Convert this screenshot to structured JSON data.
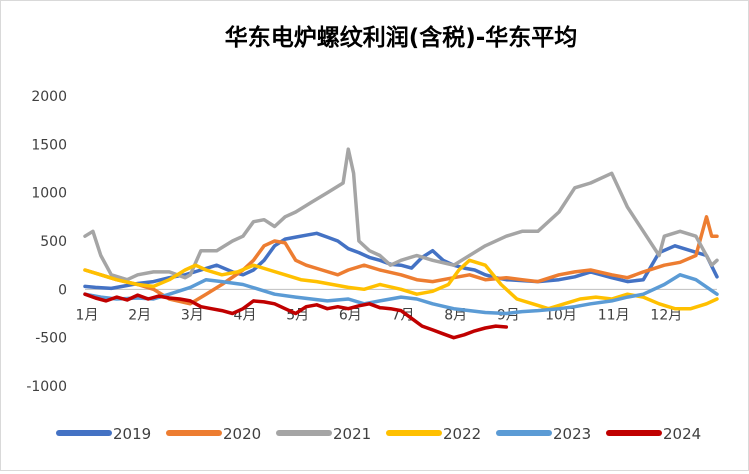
{
  "chart_data": {
    "type": "line",
    "title": "华东电炉螺纹利润(含税)-华东平均",
    "xlabel": "",
    "ylabel": "",
    "ylim": [
      -1000,
      2000
    ],
    "yticks": [
      -1000,
      -500,
      0,
      500,
      1000,
      1500,
      2000
    ],
    "ytick_labels": [
      "-1000",
      "-500",
      "0",
      "500",
      "1000",
      "1500",
      "2000"
    ],
    "xlim": [
      0,
      12
    ],
    "xtick_labels": [
      "1月",
      "2月",
      "3月",
      "4月",
      "5月",
      "6月",
      "7月",
      "8月",
      "9月",
      "10月",
      "11月",
      "12月"
    ],
    "grid": false,
    "legend_position": "bottom",
    "series": [
      {
        "name": "2019",
        "color": "#4472C4",
        "x": [
          0,
          0.2,
          0.5,
          0.8,
          1.0,
          1.3,
          1.6,
          1.9,
          2.2,
          2.5,
          2.8,
          3.0,
          3.2,
          3.4,
          3.6,
          3.8,
          4.0,
          4.2,
          4.4,
          4.6,
          4.8,
          5.0,
          5.2,
          5.4,
          5.6,
          5.8,
          6.0,
          6.2,
          6.4,
          6.6,
          6.8,
          7.0,
          7.2,
          7.4,
          7.6,
          7.8,
          8.0,
          8.3,
          8.6,
          9.0,
          9.3,
          9.6,
          10.0,
          10.3,
          10.6,
          10.9,
          11.2,
          11.5,
          11.8,
          12.0
        ],
        "y": [
          30,
          20,
          10,
          40,
          60,
          80,
          120,
          150,
          200,
          250,
          180,
          150,
          200,
          300,
          450,
          520,
          540,
          560,
          580,
          540,
          500,
          420,
          380,
          330,
          300,
          260,
          250,
          220,
          330,
          400,
          300,
          250,
          220,
          200,
          150,
          120,
          100,
          90,
          80,
          100,
          130,
          180,
          120,
          80,
          100,
          380,
          450,
          400,
          350,
          130
        ]
      },
      {
        "name": "2020",
        "color": "#ED7D31",
        "x": [
          0,
          0.3,
          0.6,
          1.0,
          1.3,
          1.6,
          2.0,
          2.3,
          2.6,
          3.0,
          3.2,
          3.4,
          3.6,
          3.8,
          4.0,
          4.2,
          4.5,
          4.8,
          5.0,
          5.3,
          5.6,
          6.0,
          6.3,
          6.6,
          7.0,
          7.3,
          7.6,
          8.0,
          8.3,
          8.6,
          9.0,
          9.3,
          9.6,
          10.0,
          10.3,
          10.6,
          11.0,
          11.3,
          11.6,
          11.8,
          11.9,
          12.0
        ],
        "y": [
          200,
          150,
          100,
          50,
          0,
          -100,
          -150,
          -50,
          50,
          200,
          300,
          450,
          500,
          480,
          300,
          250,
          200,
          150,
          200,
          250,
          200,
          150,
          100,
          80,
          120,
          150,
          100,
          120,
          100,
          80,
          150,
          180,
          200,
          150,
          120,
          180,
          250,
          280,
          350,
          750,
          550,
          550
        ]
      },
      {
        "name": "2021",
        "color": "#A5A5A5",
        "x": [
          0,
          0.15,
          0.3,
          0.5,
          0.8,
          1.0,
          1.3,
          1.6,
          1.9,
          2.0,
          2.2,
          2.5,
          2.8,
          3.0,
          3.2,
          3.4,
          3.6,
          3.8,
          4.0,
          4.3,
          4.6,
          4.9,
          5.0,
          5.1,
          5.2,
          5.4,
          5.6,
          5.8,
          6.0,
          6.3,
          6.6,
          7.0,
          7.3,
          7.6,
          8.0,
          8.3,
          8.6,
          9.0,
          9.3,
          9.6,
          10.0,
          10.3,
          10.6,
          10.9,
          11.0,
          11.3,
          11.6,
          11.9,
          12.0
        ],
        "y": [
          550,
          600,
          350,
          150,
          100,
          150,
          180,
          180,
          120,
          150,
          400,
          400,
          500,
          550,
          700,
          720,
          650,
          750,
          800,
          900,
          1000,
          1100,
          1450,
          1200,
          500,
          400,
          350,
          250,
          300,
          350,
          300,
          250,
          350,
          450,
          550,
          600,
          600,
          800,
          1050,
          1100,
          1200,
          850,
          600,
          350,
          550,
          600,
          550,
          250,
          300
        ]
      },
      {
        "name": "2022",
        "color": "#FFC000",
        "x": [
          0,
          0.3,
          0.6,
          1.0,
          1.3,
          1.6,
          1.9,
          2.1,
          2.3,
          2.6,
          2.9,
          3.2,
          3.5,
          3.8,
          4.1,
          4.4,
          4.7,
          5.0,
          5.3,
          5.6,
          6.0,
          6.3,
          6.6,
          6.9,
          7.1,
          7.3,
          7.6,
          7.9,
          8.2,
          8.5,
          8.8,
          9.1,
          9.4,
          9.7,
          10.0,
          10.3,
          10.6,
          10.9,
          11.2,
          11.5,
          11.8,
          12.0
        ],
        "y": [
          200,
          150,
          100,
          50,
          30,
          100,
          200,
          250,
          200,
          150,
          180,
          250,
          200,
          150,
          100,
          80,
          50,
          20,
          0,
          50,
          0,
          -50,
          -20,
          50,
          200,
          300,
          250,
          50,
          -100,
          -150,
          -200,
          -150,
          -100,
          -80,
          -100,
          -50,
          -80,
          -150,
          -200,
          -200,
          -150,
          -100
        ]
      },
      {
        "name": "2023",
        "color": "#5B9BD5",
        "x": [
          0,
          0.3,
          0.6,
          1.0,
          1.3,
          1.6,
          2.0,
          2.3,
          2.6,
          3.0,
          3.3,
          3.6,
          4.0,
          4.3,
          4.6,
          5.0,
          5.3,
          5.6,
          6.0,
          6.3,
          6.6,
          7.0,
          7.3,
          7.6,
          8.0,
          8.3,
          8.6,
          9.0,
          9.3,
          9.6,
          10.0,
          10.3,
          10.6,
          11.0,
          11.3,
          11.6,
          12.0
        ],
        "y": [
          -50,
          -80,
          -100,
          -90,
          -100,
          -50,
          20,
          100,
          80,
          50,
          0,
          -50,
          -80,
          -100,
          -120,
          -100,
          -150,
          -120,
          -80,
          -100,
          -150,
          -200,
          -220,
          -240,
          -250,
          -230,
          -220,
          -200,
          -180,
          -150,
          -120,
          -80,
          -50,
          50,
          150,
          100,
          -50
        ]
      },
      {
        "name": "2024",
        "color": "#C00000",
        "x": [
          0,
          0.2,
          0.4,
          0.6,
          0.8,
          1.0,
          1.2,
          1.4,
          1.6,
          1.8,
          2.0,
          2.2,
          2.4,
          2.6,
          2.8,
          3.0,
          3.2,
          3.4,
          3.6,
          3.8,
          4.0,
          4.2,
          4.4,
          4.6,
          4.8,
          5.0,
          5.2,
          5.4,
          5.6,
          5.8,
          6.0,
          6.2,
          6.4,
          6.6,
          6.8,
          7.0,
          7.2,
          7.4,
          7.6,
          7.8,
          8.0
        ],
        "y": [
          -50,
          -90,
          -120,
          -80,
          -110,
          -60,
          -100,
          -70,
          -90,
          -100,
          -120,
          -180,
          -200,
          -220,
          -250,
          -200,
          -120,
          -130,
          -150,
          -200,
          -250,
          -180,
          -160,
          -200,
          -180,
          -200,
          -170,
          -150,
          -190,
          -200,
          -220,
          -300,
          -380,
          -420,
          -460,
          -500,
          -470,
          -430,
          -400,
          -380,
          -390
        ]
      }
    ]
  }
}
